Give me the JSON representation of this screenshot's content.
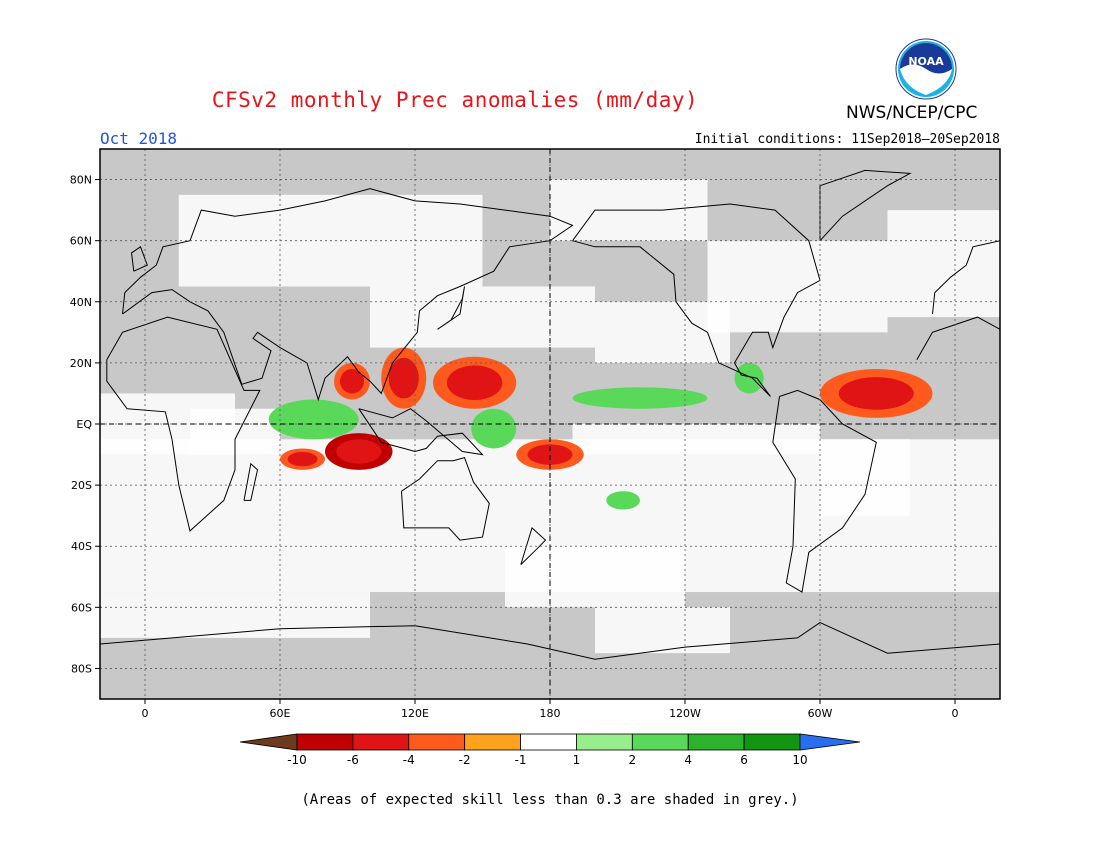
{
  "header": {
    "title": "CFSv2 monthly Prec anomalies (mm/day)",
    "agency": "NWS/NCEP/CPC",
    "logo_text": "NOAA",
    "month": "Oct 2018",
    "initial_conditions": "Initial conditions: 11Sep2018–20Sep2018"
  },
  "map": {
    "projection": "equirectangular",
    "center_longitude": 180,
    "lat_range": [
      -90,
      90
    ],
    "lon_range": [
      -20,
      380
    ],
    "lat_labels": [
      "80N",
      "60N",
      "40N",
      "20N",
      "EQ",
      "20S",
      "40S",
      "60S",
      "80S"
    ],
    "lat_values": [
      80,
      60,
      40,
      20,
      0,
      -20,
      -40,
      -60,
      -80
    ],
    "lon_labels": [
      "0",
      "60E",
      "120E",
      "180",
      "120W",
      "60W",
      "0"
    ],
    "lon_values": [
      0,
      60,
      120,
      180,
      240,
      300,
      360
    ],
    "grid": "dotted",
    "skill_mask_color": "#c8c8c8"
  },
  "colorbar": {
    "levels": [
      "-10",
      "-6",
      "-4",
      "-2",
      "-1",
      "1",
      "2",
      "4",
      "6",
      "10"
    ],
    "colors": [
      "#6e3a1f",
      "#c00000",
      "#e01414",
      "#ff5a1e",
      "#ffa21e",
      "#ffffff",
      "#98ee8c",
      "#5ad85a",
      "#2cb22c",
      "#129612",
      "#2a6ef0"
    ]
  },
  "footnote": "(Areas of expected skill less than 0.3 are shaded in grey.)",
  "anomaly_regions": [
    {
      "name": "bay-of-bengal",
      "category": "dry",
      "lon": [
        84,
        100
      ],
      "lat": [
        8,
        20
      ]
    },
    {
      "name": "south-china-sea",
      "category": "dry",
      "lon": [
        105,
        125
      ],
      "lat": [
        5,
        25
      ]
    },
    {
      "name": "west-pacific-north",
      "category": "dry",
      "lon": [
        128,
        165
      ],
      "lat": [
        5,
        22
      ]
    },
    {
      "name": "east-indian-ocean",
      "category": "very-dry",
      "lon": [
        80,
        110
      ],
      "lat": [
        -15,
        -3
      ]
    },
    {
      "name": "south-indian-ocean",
      "category": "dry",
      "lon": [
        60,
        80
      ],
      "lat": [
        -15,
        -8
      ]
    },
    {
      "name": "sw-pacific",
      "category": "dry",
      "lon": [
        165,
        195
      ],
      "lat": [
        -15,
        -5
      ]
    },
    {
      "name": "caribbean-atlantic",
      "category": "dry",
      "lon": [
        300,
        350
      ],
      "lat": [
        2,
        18
      ]
    },
    {
      "name": "central-indian-ocean",
      "category": "wet",
      "lon": [
        55,
        95
      ],
      "lat": [
        -5,
        8
      ]
    },
    {
      "name": "maritime-continent-east",
      "category": "wet",
      "lon": [
        145,
        165
      ],
      "lat": [
        -8,
        5
      ]
    },
    {
      "name": "central-america",
      "category": "wet",
      "lon": [
        262,
        275
      ],
      "lat": [
        10,
        20
      ]
    },
    {
      "name": "east-pacific-itcz",
      "category": "wet",
      "lon": [
        190,
        250
      ],
      "lat": [
        5,
        12
      ]
    },
    {
      "name": "south-pacific",
      "category": "wet",
      "lon": [
        205,
        220
      ],
      "lat": [
        -28,
        -22
      ]
    }
  ]
}
